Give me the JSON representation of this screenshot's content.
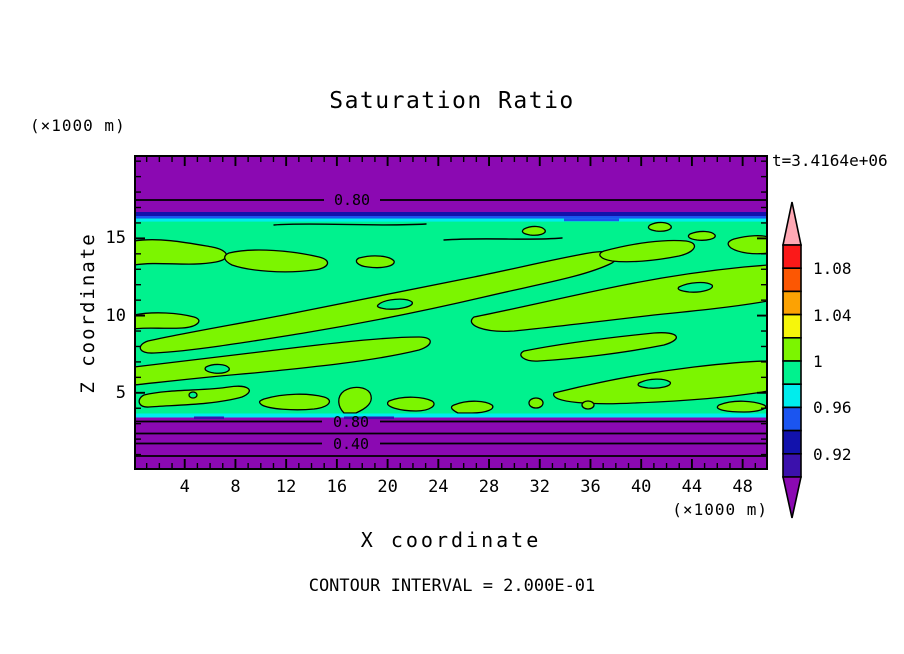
{
  "chart_data": {
    "type": "contour",
    "title": "Saturation Ratio",
    "xlabel": "X coordinate",
    "ylabel": "Z coordinate",
    "x_units": "(×1000 m)",
    "y_units": "(×1000 m)",
    "time_annotation": "t=3.4164e+06",
    "contour_interval_text": "CONTOUR INTERVAL = 2.000E-01",
    "contour_interval": 0.2,
    "x_range": [
      0,
      50
    ],
    "z_range": [
      0,
      20.4
    ],
    "x_major_ticks": [
      4,
      8,
      12,
      16,
      20,
      24,
      28,
      32,
      36,
      40,
      44,
      48
    ],
    "x_minor_step": 1,
    "z_major_ticks": [
      5,
      10,
      15
    ],
    "z_minor_step": 1,
    "grid": false,
    "field_colors": {
      "background_0.98_1.00": "#00F28E",
      "patches_1.00_1.02": "#7CF500",
      "bands_below_0.90": "#8B09B2",
      "stripe_0.92_0.94": "#1212AC",
      "stripe_0.94_0.96": "#1B55F0",
      "stripe_0.96_0.98": "#00EDED",
      "indigo_0.90_0.92": "#3B11AC"
    },
    "line_contours": {
      "top": [
        {
          "label": "0.80",
          "z": 17.5
        }
      ],
      "bottom": [
        {
          "label": "0.80",
          "z": 3.2
        },
        {
          "label": null,
          "z": 2.4
        },
        {
          "label": "0.40",
          "z": 1.75
        },
        {
          "label": null,
          "z": 0.95
        }
      ]
    },
    "regions": [
      {
        "z_range": [
          16.8,
          20.4
        ],
        "saturation": "< 0.90",
        "color": "#8B09B2"
      },
      {
        "z_range": [
          16.5,
          16.8
        ],
        "saturation": "0.92–0.94",
        "color": "#1212AC"
      },
      {
        "z_range": [
          16.3,
          16.5
        ],
        "saturation": "0.94–0.96",
        "color": "#1B55F0"
      },
      {
        "z_range": [
          16.1,
          16.3
        ],
        "saturation": "0.96–0.98",
        "color": "#00EDED"
      },
      {
        "z_range": [
          3.5,
          16.1
        ],
        "saturation": "0.98–1.00 background with 1.00–1.02 patches",
        "color": "#00F28E"
      },
      {
        "z_range": [
          3.3,
          3.5
        ],
        "saturation": "0.96–0.98",
        "color": "#00EDED"
      },
      {
        "z_range": [
          0,
          3.3
        ],
        "saturation": "< 0.90",
        "color": "#8B09B2"
      }
    ],
    "colorbar": {
      "orientation": "vertical",
      "above_color": "#FFA8B4",
      "below_color": "#8B09B2",
      "cells": [
        {
          "from": 1.08,
          "to": 1.1,
          "color": "#FB1919"
        },
        {
          "from": 1.06,
          "to": 1.08,
          "color": "#FC5703"
        },
        {
          "from": 1.04,
          "to": 1.06,
          "color": "#FCA203"
        },
        {
          "from": 1.02,
          "to": 1.04,
          "color": "#F6F60B"
        },
        {
          "from": 1.0,
          "to": 1.02,
          "color": "#7CF500"
        },
        {
          "from": 0.98,
          "to": 1.0,
          "color": "#00F28E"
        },
        {
          "from": 0.96,
          "to": 0.98,
          "color": "#00EDED"
        },
        {
          "from": 0.94,
          "to": 0.96,
          "color": "#1B55F0"
        },
        {
          "from": 0.92,
          "to": 0.94,
          "color": "#1212AC"
        },
        {
          "from": 0.9,
          "to": 0.92,
          "color": "#3B11AC"
        }
      ],
      "tick_labels": [
        "1.08",
        "1.04",
        "1",
        "0.96",
        "0.92"
      ]
    }
  }
}
